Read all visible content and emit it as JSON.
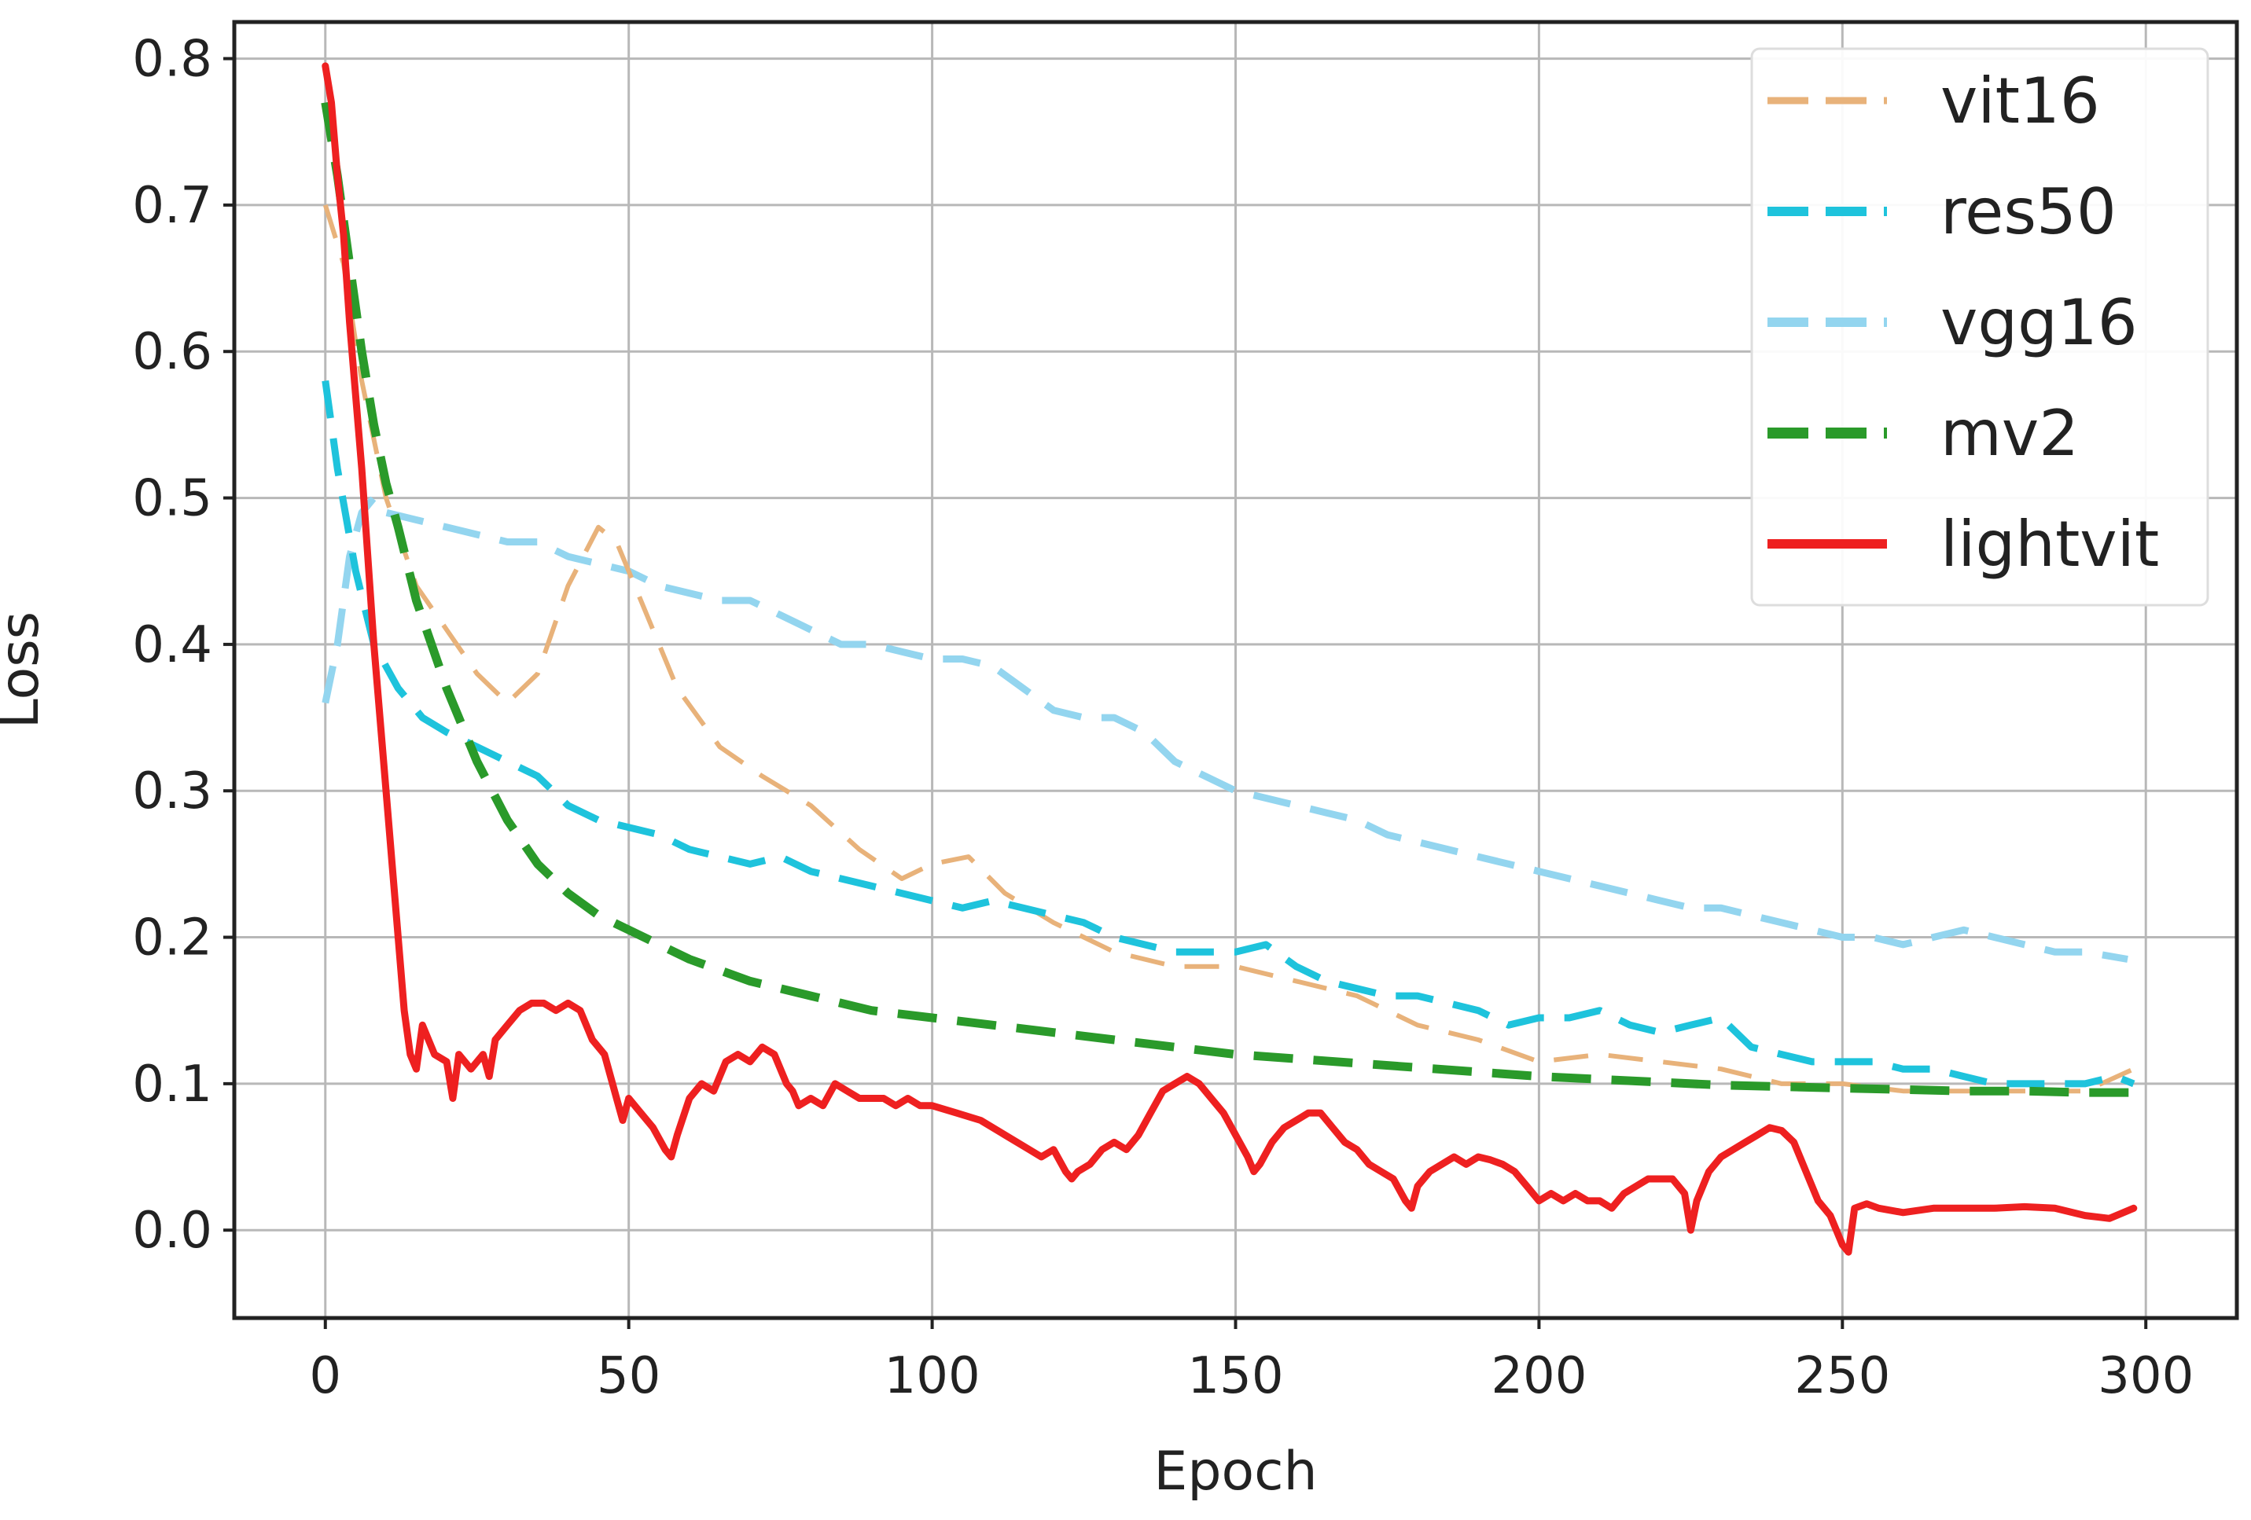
{
  "chart_data": {
    "type": "line",
    "title": "",
    "xlabel": "Epoch",
    "ylabel": "Loss",
    "xlim": [
      -15,
      315
    ],
    "ylim": [
      -0.06,
      0.825
    ],
    "xticks": [
      0,
      50,
      100,
      150,
      200,
      250,
      300
    ],
    "yticks": [
      0.0,
      0.1,
      0.2,
      0.3,
      0.4,
      0.5,
      0.6,
      0.7,
      0.8
    ],
    "grid": true,
    "legend_position": "top-right",
    "series": [
      {
        "name": "vit16",
        "color": "#e8b27a",
        "style": "dashed",
        "x": [
          0,
          3,
          6,
          10,
          15,
          20,
          25,
          30,
          35,
          40,
          45,
          48,
          52,
          58,
          65,
          72,
          80,
          88,
          95,
          100,
          106,
          112,
          120,
          130,
          140,
          150,
          160,
          170,
          180,
          190,
          200,
          210,
          220,
          230,
          240,
          250,
          260,
          270,
          280,
          290,
          298
        ],
        "y": [
          0.7,
          0.66,
          0.58,
          0.5,
          0.44,
          0.41,
          0.38,
          0.36,
          0.38,
          0.44,
          0.48,
          0.47,
          0.43,
          0.37,
          0.33,
          0.31,
          0.29,
          0.26,
          0.24,
          0.25,
          0.255,
          0.23,
          0.21,
          0.19,
          0.18,
          0.18,
          0.17,
          0.16,
          0.14,
          0.13,
          0.115,
          0.12,
          0.115,
          0.11,
          0.1,
          0.1,
          0.095,
          0.095,
          0.095,
          0.095,
          0.11
        ]
      },
      {
        "name": "res50",
        "color": "#1ec3dc",
        "style": "dashed",
        "x": [
          0,
          2,
          5,
          8,
          12,
          16,
          20,
          25,
          30,
          35,
          40,
          45,
          50,
          55,
          60,
          65,
          70,
          75,
          80,
          85,
          90,
          95,
          100,
          105,
          110,
          115,
          120,
          125,
          130,
          135,
          140,
          145,
          150,
          155,
          160,
          165,
          170,
          175,
          180,
          185,
          190,
          195,
          200,
          205,
          210,
          215,
          220,
          225,
          230,
          235,
          240,
          245,
          250,
          255,
          260,
          265,
          270,
          275,
          280,
          285,
          290,
          295,
          298
        ],
        "y": [
          0.58,
          0.52,
          0.45,
          0.4,
          0.37,
          0.35,
          0.34,
          0.33,
          0.32,
          0.31,
          0.29,
          0.28,
          0.275,
          0.27,
          0.26,
          0.255,
          0.25,
          0.255,
          0.245,
          0.24,
          0.235,
          0.23,
          0.225,
          0.22,
          0.225,
          0.22,
          0.215,
          0.21,
          0.2,
          0.195,
          0.19,
          0.19,
          0.19,
          0.195,
          0.18,
          0.17,
          0.165,
          0.16,
          0.16,
          0.155,
          0.15,
          0.14,
          0.145,
          0.145,
          0.15,
          0.14,
          0.135,
          0.14,
          0.145,
          0.125,
          0.12,
          0.115,
          0.115,
          0.115,
          0.11,
          0.11,
          0.105,
          0.1,
          0.1,
          0.1,
          0.1,
          0.105,
          0.1
        ]
      },
      {
        "name": "vgg16",
        "color": "#93d5ef",
        "style": "dashed",
        "x": [
          0,
          2,
          4,
          6,
          8,
          10,
          15,
          20,
          25,
          30,
          35,
          40,
          45,
          50,
          55,
          60,
          65,
          70,
          75,
          80,
          85,
          90,
          95,
          100,
          105,
          110,
          115,
          120,
          125,
          130,
          135,
          140,
          145,
          150,
          155,
          160,
          165,
          170,
          175,
          180,
          185,
          190,
          195,
          200,
          205,
          210,
          215,
          220,
          225,
          230,
          235,
          240,
          245,
          250,
          255,
          260,
          265,
          270,
          275,
          280,
          285,
          290,
          297
        ],
        "y": [
          0.36,
          0.4,
          0.46,
          0.49,
          0.5,
          0.49,
          0.485,
          0.48,
          0.475,
          0.47,
          0.47,
          0.46,
          0.455,
          0.45,
          0.44,
          0.435,
          0.43,
          0.43,
          0.42,
          0.41,
          0.4,
          0.4,
          0.395,
          0.39,
          0.39,
          0.385,
          0.37,
          0.355,
          0.35,
          0.35,
          0.34,
          0.32,
          0.31,
          0.3,
          0.295,
          0.29,
          0.285,
          0.28,
          0.27,
          0.265,
          0.26,
          0.255,
          0.25,
          0.245,
          0.24,
          0.235,
          0.23,
          0.225,
          0.22,
          0.22,
          0.215,
          0.21,
          0.205,
          0.2,
          0.2,
          0.195,
          0.2,
          0.205,
          0.2,
          0.195,
          0.19,
          0.19,
          0.185
        ]
      },
      {
        "name": "mv2",
        "color": "#2a9a2a",
        "style": "dashed",
        "x": [
          0,
          2,
          4,
          6,
          8,
          10,
          12,
          15,
          20,
          25,
          30,
          35,
          40,
          45,
          50,
          60,
          70,
          80,
          90,
          100,
          110,
          120,
          130,
          140,
          150,
          160,
          170,
          180,
          190,
          200,
          210,
          220,
          230,
          240,
          250,
          260,
          270,
          280,
          290,
          298
        ],
        "y": [
          0.77,
          0.72,
          0.66,
          0.6,
          0.55,
          0.51,
          0.48,
          0.43,
          0.37,
          0.32,
          0.28,
          0.25,
          0.23,
          0.215,
          0.205,
          0.185,
          0.17,
          0.16,
          0.15,
          0.145,
          0.14,
          0.135,
          0.13,
          0.125,
          0.12,
          0.117,
          0.114,
          0.111,
          0.108,
          0.105,
          0.103,
          0.101,
          0.099,
          0.098,
          0.097,
          0.096,
          0.095,
          0.095,
          0.094,
          0.094
        ]
      },
      {
        "name": "lightvit",
        "color": "#ee2020",
        "style": "solid",
        "x": [
          0,
          1,
          2,
          3,
          4,
          6,
          8,
          10,
          12,
          13,
          14,
          15,
          16,
          18,
          20,
          21,
          22,
          24,
          26,
          27,
          28,
          30,
          32,
          34,
          36,
          38,
          40,
          42,
          44,
          46,
          48,
          49,
          50,
          52,
          54,
          56,
          57,
          58,
          60,
          62,
          64,
          66,
          68,
          70,
          72,
          74,
          76,
          77,
          78,
          80,
          82,
          84,
          86,
          88,
          90,
          92,
          94,
          96,
          98,
          100,
          104,
          108,
          112,
          116,
          118,
          120,
          122,
          123,
          124,
          126,
          128,
          130,
          132,
          134,
          136,
          138,
          140,
          142,
          144,
          146,
          148,
          150,
          152,
          153,
          154,
          156,
          158,
          160,
          162,
          164,
          166,
          168,
          170,
          172,
          174,
          176,
          178,
          179,
          180,
          182,
          184,
          186,
          188,
          190,
          192,
          194,
          196,
          198,
          200,
          202,
          204,
          206,
          208,
          210,
          212,
          214,
          216,
          218,
          220,
          222,
          224,
          225,
          226,
          228,
          230,
          232,
          234,
          236,
          238,
          240,
          242,
          244,
          246,
          248,
          250,
          251,
          252,
          254,
          256,
          260,
          265,
          270,
          275,
          280,
          285,
          290,
          294,
          298
        ],
        "y": [
          0.795,
          0.77,
          0.72,
          0.68,
          0.62,
          0.52,
          0.4,
          0.3,
          0.2,
          0.15,
          0.12,
          0.11,
          0.14,
          0.12,
          0.115,
          0.09,
          0.12,
          0.11,
          0.12,
          0.105,
          0.13,
          0.14,
          0.15,
          0.155,
          0.155,
          0.15,
          0.155,
          0.15,
          0.13,
          0.12,
          0.09,
          0.075,
          0.09,
          0.08,
          0.07,
          0.055,
          0.05,
          0.065,
          0.09,
          0.1,
          0.095,
          0.115,
          0.12,
          0.115,
          0.125,
          0.12,
          0.1,
          0.095,
          0.085,
          0.09,
          0.085,
          0.1,
          0.095,
          0.09,
          0.09,
          0.09,
          0.085,
          0.09,
          0.085,
          0.085,
          0.08,
          0.075,
          0.065,
          0.055,
          0.05,
          0.055,
          0.04,
          0.035,
          0.04,
          0.045,
          0.055,
          0.06,
          0.055,
          0.065,
          0.08,
          0.095,
          0.1,
          0.105,
          0.1,
          0.09,
          0.08,
          0.065,
          0.05,
          0.04,
          0.045,
          0.06,
          0.07,
          0.075,
          0.08,
          0.08,
          0.07,
          0.06,
          0.055,
          0.045,
          0.04,
          0.035,
          0.02,
          0.015,
          0.03,
          0.04,
          0.045,
          0.05,
          0.045,
          0.05,
          0.048,
          0.045,
          0.04,
          0.03,
          0.02,
          0.025,
          0.02,
          0.025,
          0.02,
          0.02,
          0.015,
          0.025,
          0.03,
          0.035,
          0.035,
          0.035,
          0.025,
          0.0,
          0.02,
          0.04,
          0.05,
          0.055,
          0.06,
          0.065,
          0.07,
          0.068,
          0.06,
          0.04,
          0.02,
          0.01,
          -0.01,
          -0.015,
          0.015,
          0.018,
          0.015,
          0.012,
          0.015,
          0.015,
          0.015,
          0.016,
          0.015,
          0.01,
          0.008,
          0.015
        ]
      }
    ]
  }
}
